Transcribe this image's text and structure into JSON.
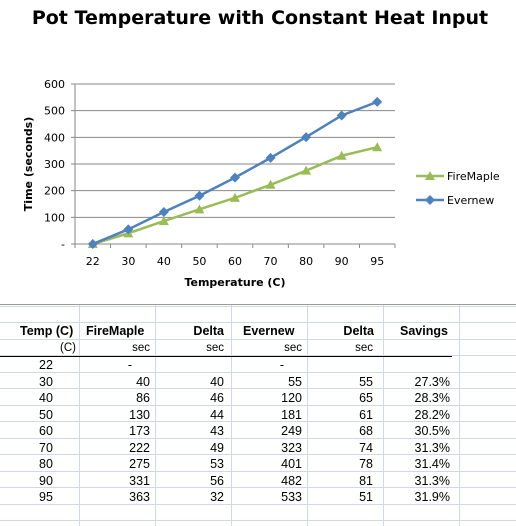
{
  "chart_data": {
    "type": "line",
    "title": "Pot Temperature with Constant Heat Input",
    "xlabel": "Temperature (C)",
    "ylabel": "Time (seconds)",
    "categories": [
      "22",
      "30",
      "40",
      "50",
      "60",
      "70",
      "80",
      "90",
      "95"
    ],
    "y_ticks": [
      "-",
      "100",
      "200",
      "300",
      "400",
      "500",
      "600"
    ],
    "ylim": [
      0,
      600
    ],
    "grid": true,
    "legend_position": "right",
    "series": [
      {
        "name": "FireMaple",
        "color": "#9BBB59",
        "marker": "triangle",
        "values": [
          0,
          40,
          86,
          130,
          173,
          222,
          275,
          331,
          363
        ]
      },
      {
        "name": "Evernew",
        "color": "#4F81BD",
        "marker": "diamond",
        "values": [
          0,
          55,
          120,
          181,
          249,
          323,
          401,
          482,
          533
        ]
      }
    ]
  },
  "table": {
    "headers": [
      "Temp (C)",
      "FireMaple",
      "Delta",
      "Evernew",
      "Delta",
      "Savings"
    ],
    "units": [
      "(C)",
      "sec",
      "sec",
      "sec",
      "sec",
      ""
    ],
    "rows": [
      [
        "22",
        "-",
        "",
        "-",
        "",
        ""
      ],
      [
        "30",
        "40",
        "40",
        "55",
        "55",
        "27.3%"
      ],
      [
        "40",
        "86",
        "46",
        "120",
        "65",
        "28.3%"
      ],
      [
        "50",
        "130",
        "44",
        "181",
        "61",
        "28.2%"
      ],
      [
        "60",
        "173",
        "43",
        "249",
        "68",
        "30.5%"
      ],
      [
        "70",
        "222",
        "49",
        "323",
        "74",
        "31.3%"
      ],
      [
        "80",
        "275",
        "53",
        "401",
        "78",
        "31.4%"
      ],
      [
        "90",
        "331",
        "56",
        "482",
        "81",
        "31.3%"
      ],
      [
        "95",
        "363",
        "32",
        "533",
        "51",
        "31.9%"
      ]
    ]
  }
}
